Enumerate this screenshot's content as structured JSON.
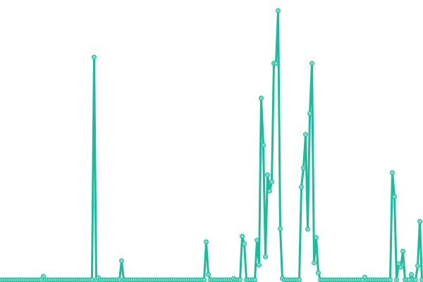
{
  "chart_data": {
    "type": "line",
    "title": "",
    "xlabel": "",
    "ylabel": "",
    "markers": true,
    "grid": false,
    "axes_visible": false,
    "ylim": [
      0,
      100
    ],
    "colors": {
      "line": "#1abc9c",
      "marker_fill": "#76dcc6",
      "marker_stroke": "#1abc9c"
    },
    "values": [
      0,
      0,
      0,
      0,
      0,
      0,
      0,
      0,
      0,
      0,
      0,
      0,
      0,
      0,
      0,
      0,
      0,
      0,
      0,
      0,
      1.3,
      0,
      0,
      0,
      0,
      0,
      0,
      0,
      0,
      0,
      0,
      0,
      0,
      0,
      0,
      0,
      0,
      0,
      0,
      0,
      0,
      0,
      0,
      0,
      82.7,
      0,
      0.8,
      0,
      0,
      0,
      0,
      0,
      0,
      0,
      0,
      0,
      0,
      7.1,
      0,
      0,
      0,
      0,
      0,
      0,
      0,
      0,
      0,
      0,
      0,
      0,
      0,
      0,
      0,
      0,
      0,
      0,
      0,
      0,
      0,
      0,
      0,
      0,
      0,
      0,
      0,
      0,
      0,
      0,
      0,
      0,
      0,
      0,
      0,
      0,
      0,
      0,
      0,
      14.1,
      2,
      0,
      0,
      0,
      0,
      0,
      0,
      0,
      0,
      0,
      0,
      0,
      0.5,
      0,
      0,
      0,
      16.2,
      13.4,
      0,
      0,
      0,
      0,
      0,
      14.7,
      5.5,
      67.5,
      50,
      8.6,
      39,
      33,
      36.4,
      80.4,
      80.4,
      100,
      19,
      0.5,
      0,
      0,
      0,
      0,
      0,
      0,
      0,
      0,
      34.5,
      41.6,
      54,
      18.8,
      61.8,
      80.4,
      6.3,
      15.7,
      2.6,
      0,
      0,
      0,
      0,
      0,
      0,
      0,
      0,
      0,
      0,
      0,
      0,
      0,
      0,
      0,
      0,
      0,
      0,
      0,
      0,
      0,
      1,
      0,
      0,
      0,
      0,
      0,
      0,
      0,
      0,
      0,
      0,
      0,
      0,
      39.8,
      30.9,
      0,
      6,
      4.7,
      10.7,
      0,
      0,
      0,
      2,
      0,
      0,
      5.2,
      21.7,
      0
    ]
  }
}
